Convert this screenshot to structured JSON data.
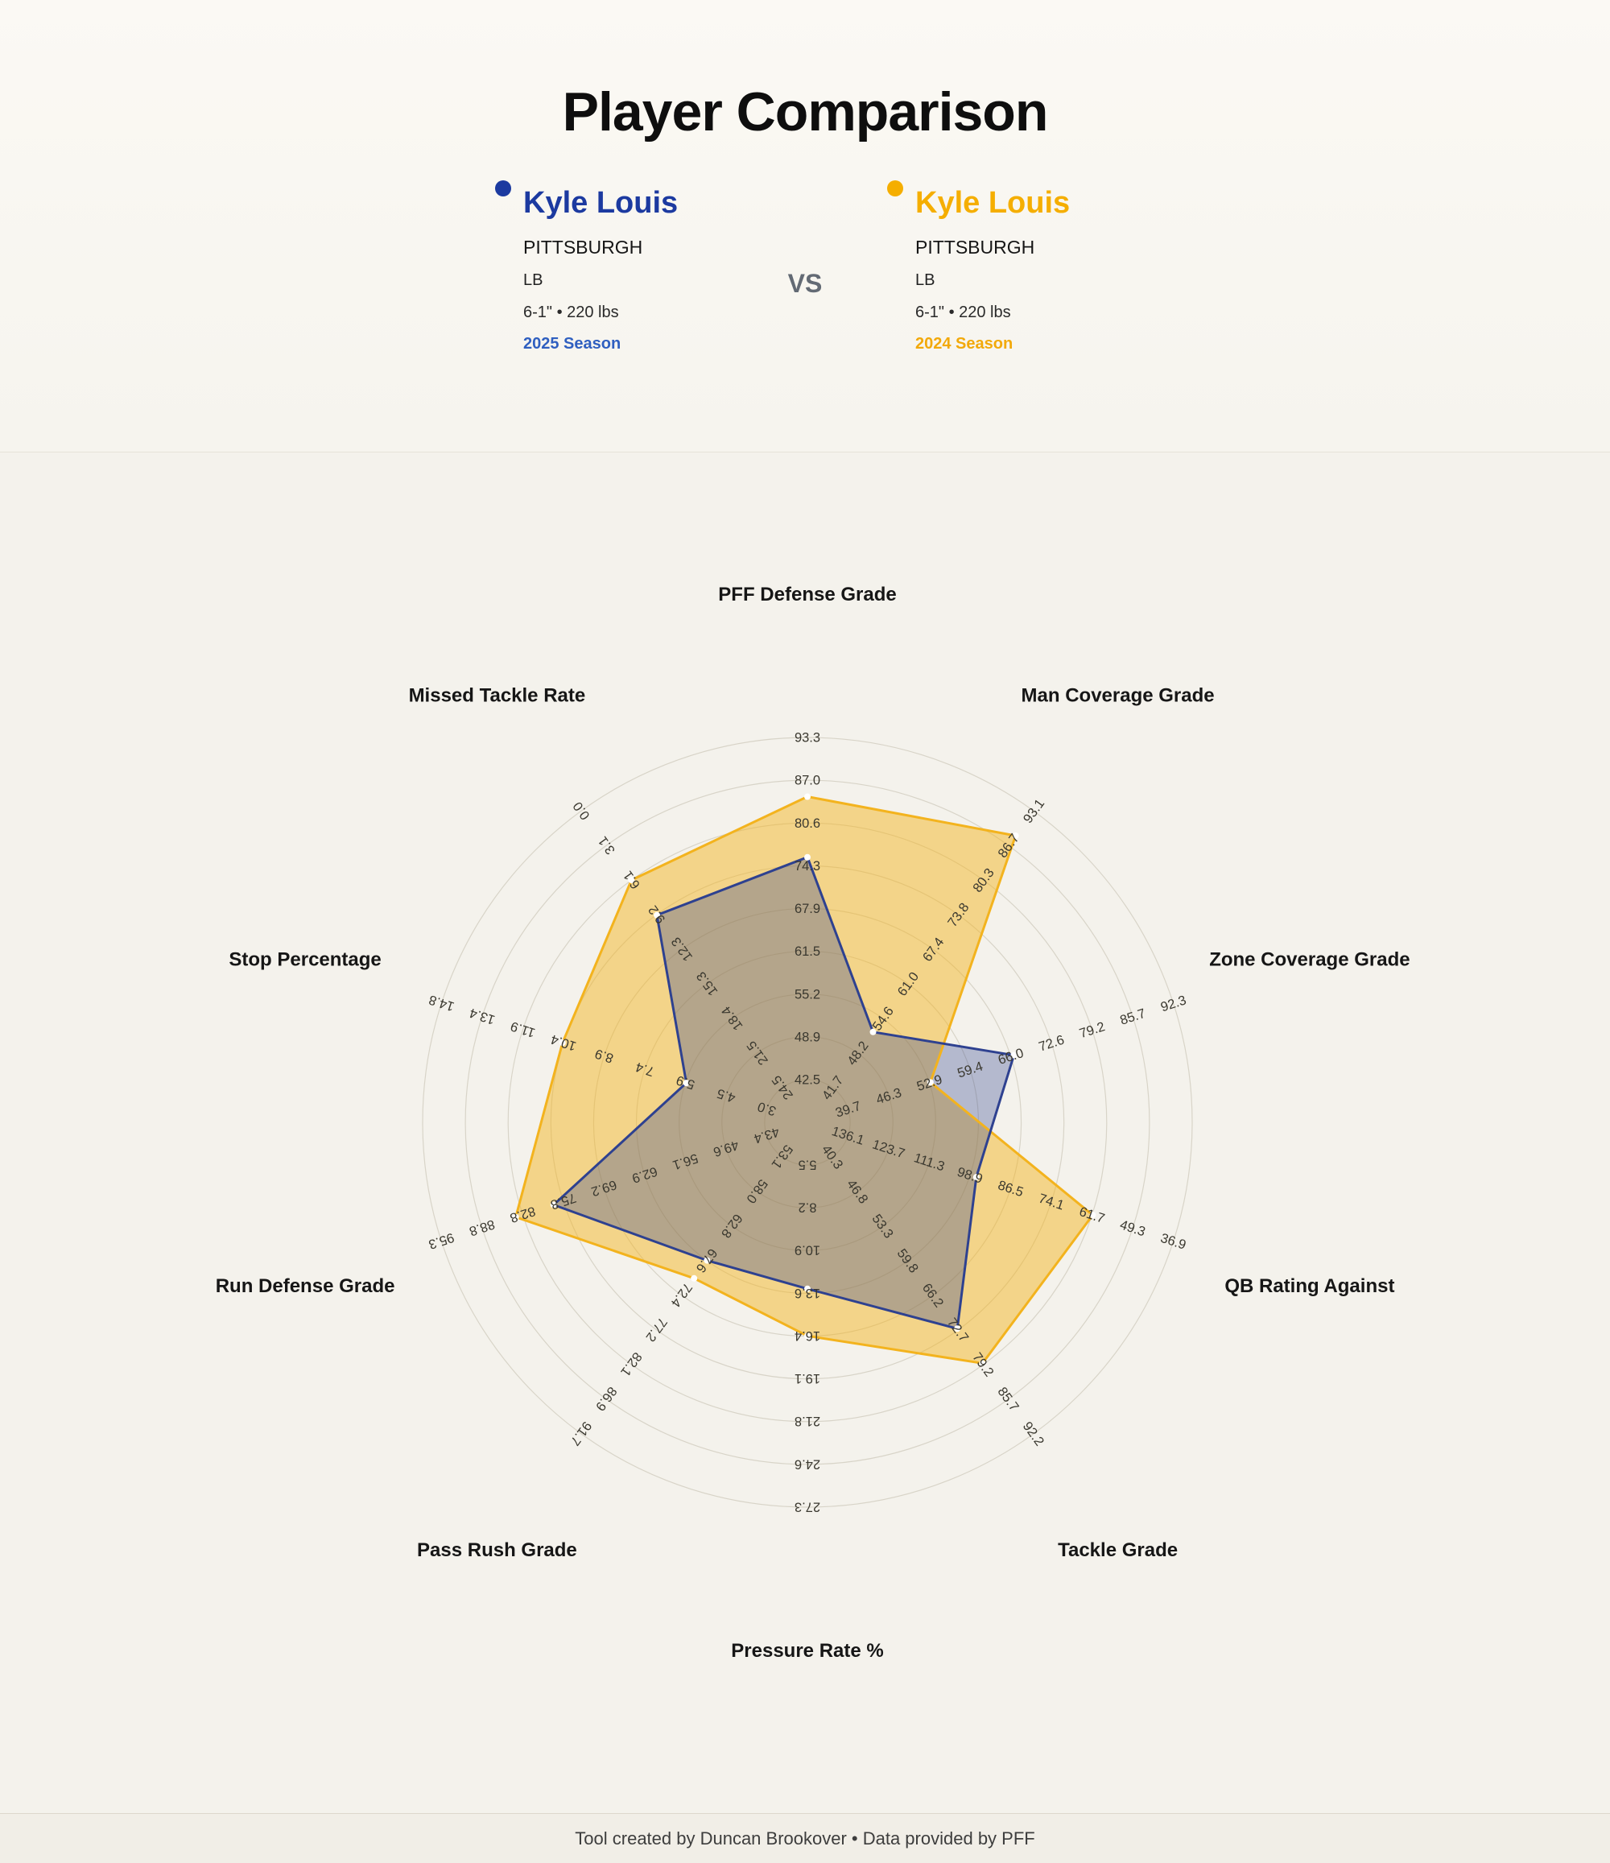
{
  "page": {
    "title": "Player Comparison",
    "vs_label": "VS",
    "footer": "Tool created by Duncan Brookover • Data provided by PFF"
  },
  "players": [
    {
      "name": "Kyle Louis",
      "team": "PITTSBURGH",
      "position": "LB",
      "measurables": "6-1\" • 220 lbs",
      "season": "2025 Season",
      "color": "#1c3aa0",
      "season_color": "#2f5fc0"
    },
    {
      "name": "Kyle Louis",
      "team": "PITTSBURGH",
      "position": "LB",
      "measurables": "6-1\" • 220 lbs",
      "season": "2024 Season",
      "color": "#f5ae00",
      "season_color": "#f2a90a"
    }
  ],
  "chart_data": {
    "type": "radar",
    "rings": 9,
    "grid_color": "#d8d4c8",
    "axes": [
      {
        "label": "PFF Defense Grade",
        "ticks": [
          "42.5",
          "48.9",
          "55.2",
          "61.5",
          "67.9",
          "74.3",
          "80.6",
          "87.0",
          "93.3"
        ]
      },
      {
        "label": "Man Coverage Grade",
        "ticks": [
          "41.7",
          "48.2",
          "54.6",
          "61.0",
          "67.4",
          "73.8",
          "80.3",
          "86.7",
          "93.1"
        ]
      },
      {
        "label": "Zone Coverage Grade",
        "ticks": [
          "39.7",
          "46.3",
          "52.9",
          "59.4",
          "66.0",
          "72.6",
          "79.2",
          "85.7",
          "92.3"
        ]
      },
      {
        "label": "QB Rating Against",
        "ticks": [
          "136.1",
          "123.7",
          "111.3",
          "98.9",
          "86.5",
          "74.1",
          "61.7",
          "49.3",
          "36.9"
        ]
      },
      {
        "label": "Tackle Grade",
        "ticks": [
          "40.3",
          "46.8",
          "53.3",
          "59.8",
          "66.2",
          "72.7",
          "79.2",
          "85.7",
          "92.2"
        ]
      },
      {
        "label": "Pressure Rate %",
        "ticks": [
          "5.5",
          "8.2",
          "10.9",
          "13.6",
          "16.4",
          "19.1",
          "21.8",
          "24.6",
          "27.3"
        ]
      },
      {
        "label": "Pass Rush Grade",
        "ticks": [
          "53.1",
          "58.0",
          "62.8",
          "67.6",
          "72.4",
          "77.2",
          "82.1",
          "86.9",
          "91.7"
        ]
      },
      {
        "label": "Run Defense Grade",
        "ticks": [
          "43.4",
          "49.6",
          "56.1",
          "62.9",
          "69.2",
          "75.8",
          "82.8",
          "88.8",
          "95.3"
        ]
      },
      {
        "label": "Stop Percentage",
        "ticks": [
          "3.0",
          "4.5",
          "5.9",
          "7.4",
          "8.9",
          "10.4",
          "11.9",
          "13.4",
          "14.8"
        ]
      },
      {
        "label": "Missed Tackle Rate",
        "ticks": [
          "24.5",
          "21.5",
          "18.4",
          "15.3",
          "12.3",
          "9.2",
          "6.1",
          "3.1",
          "0.0"
        ]
      }
    ],
    "series": [
      {
        "name": "Kyle Louis — 2025 Season",
        "color": "#2e4190",
        "fill": "rgba(46,65,144,0.32)",
        "values": [
          75.5,
          52.0,
          66.5,
          97.0,
          72.5,
          13.4,
          67.5,
          77.5,
          5.9,
          9.2
        ]
      },
      {
        "name": "Kyle Louis — 2024 Season",
        "color": "#f3b31e",
        "fill": "rgba(243,179,30,0.48)",
        "values": [
          84.5,
          88.5,
          53.0,
          61.5,
          79.0,
          16.4,
          70.0,
          83.5,
          10.4,
          6.1
        ]
      }
    ]
  }
}
